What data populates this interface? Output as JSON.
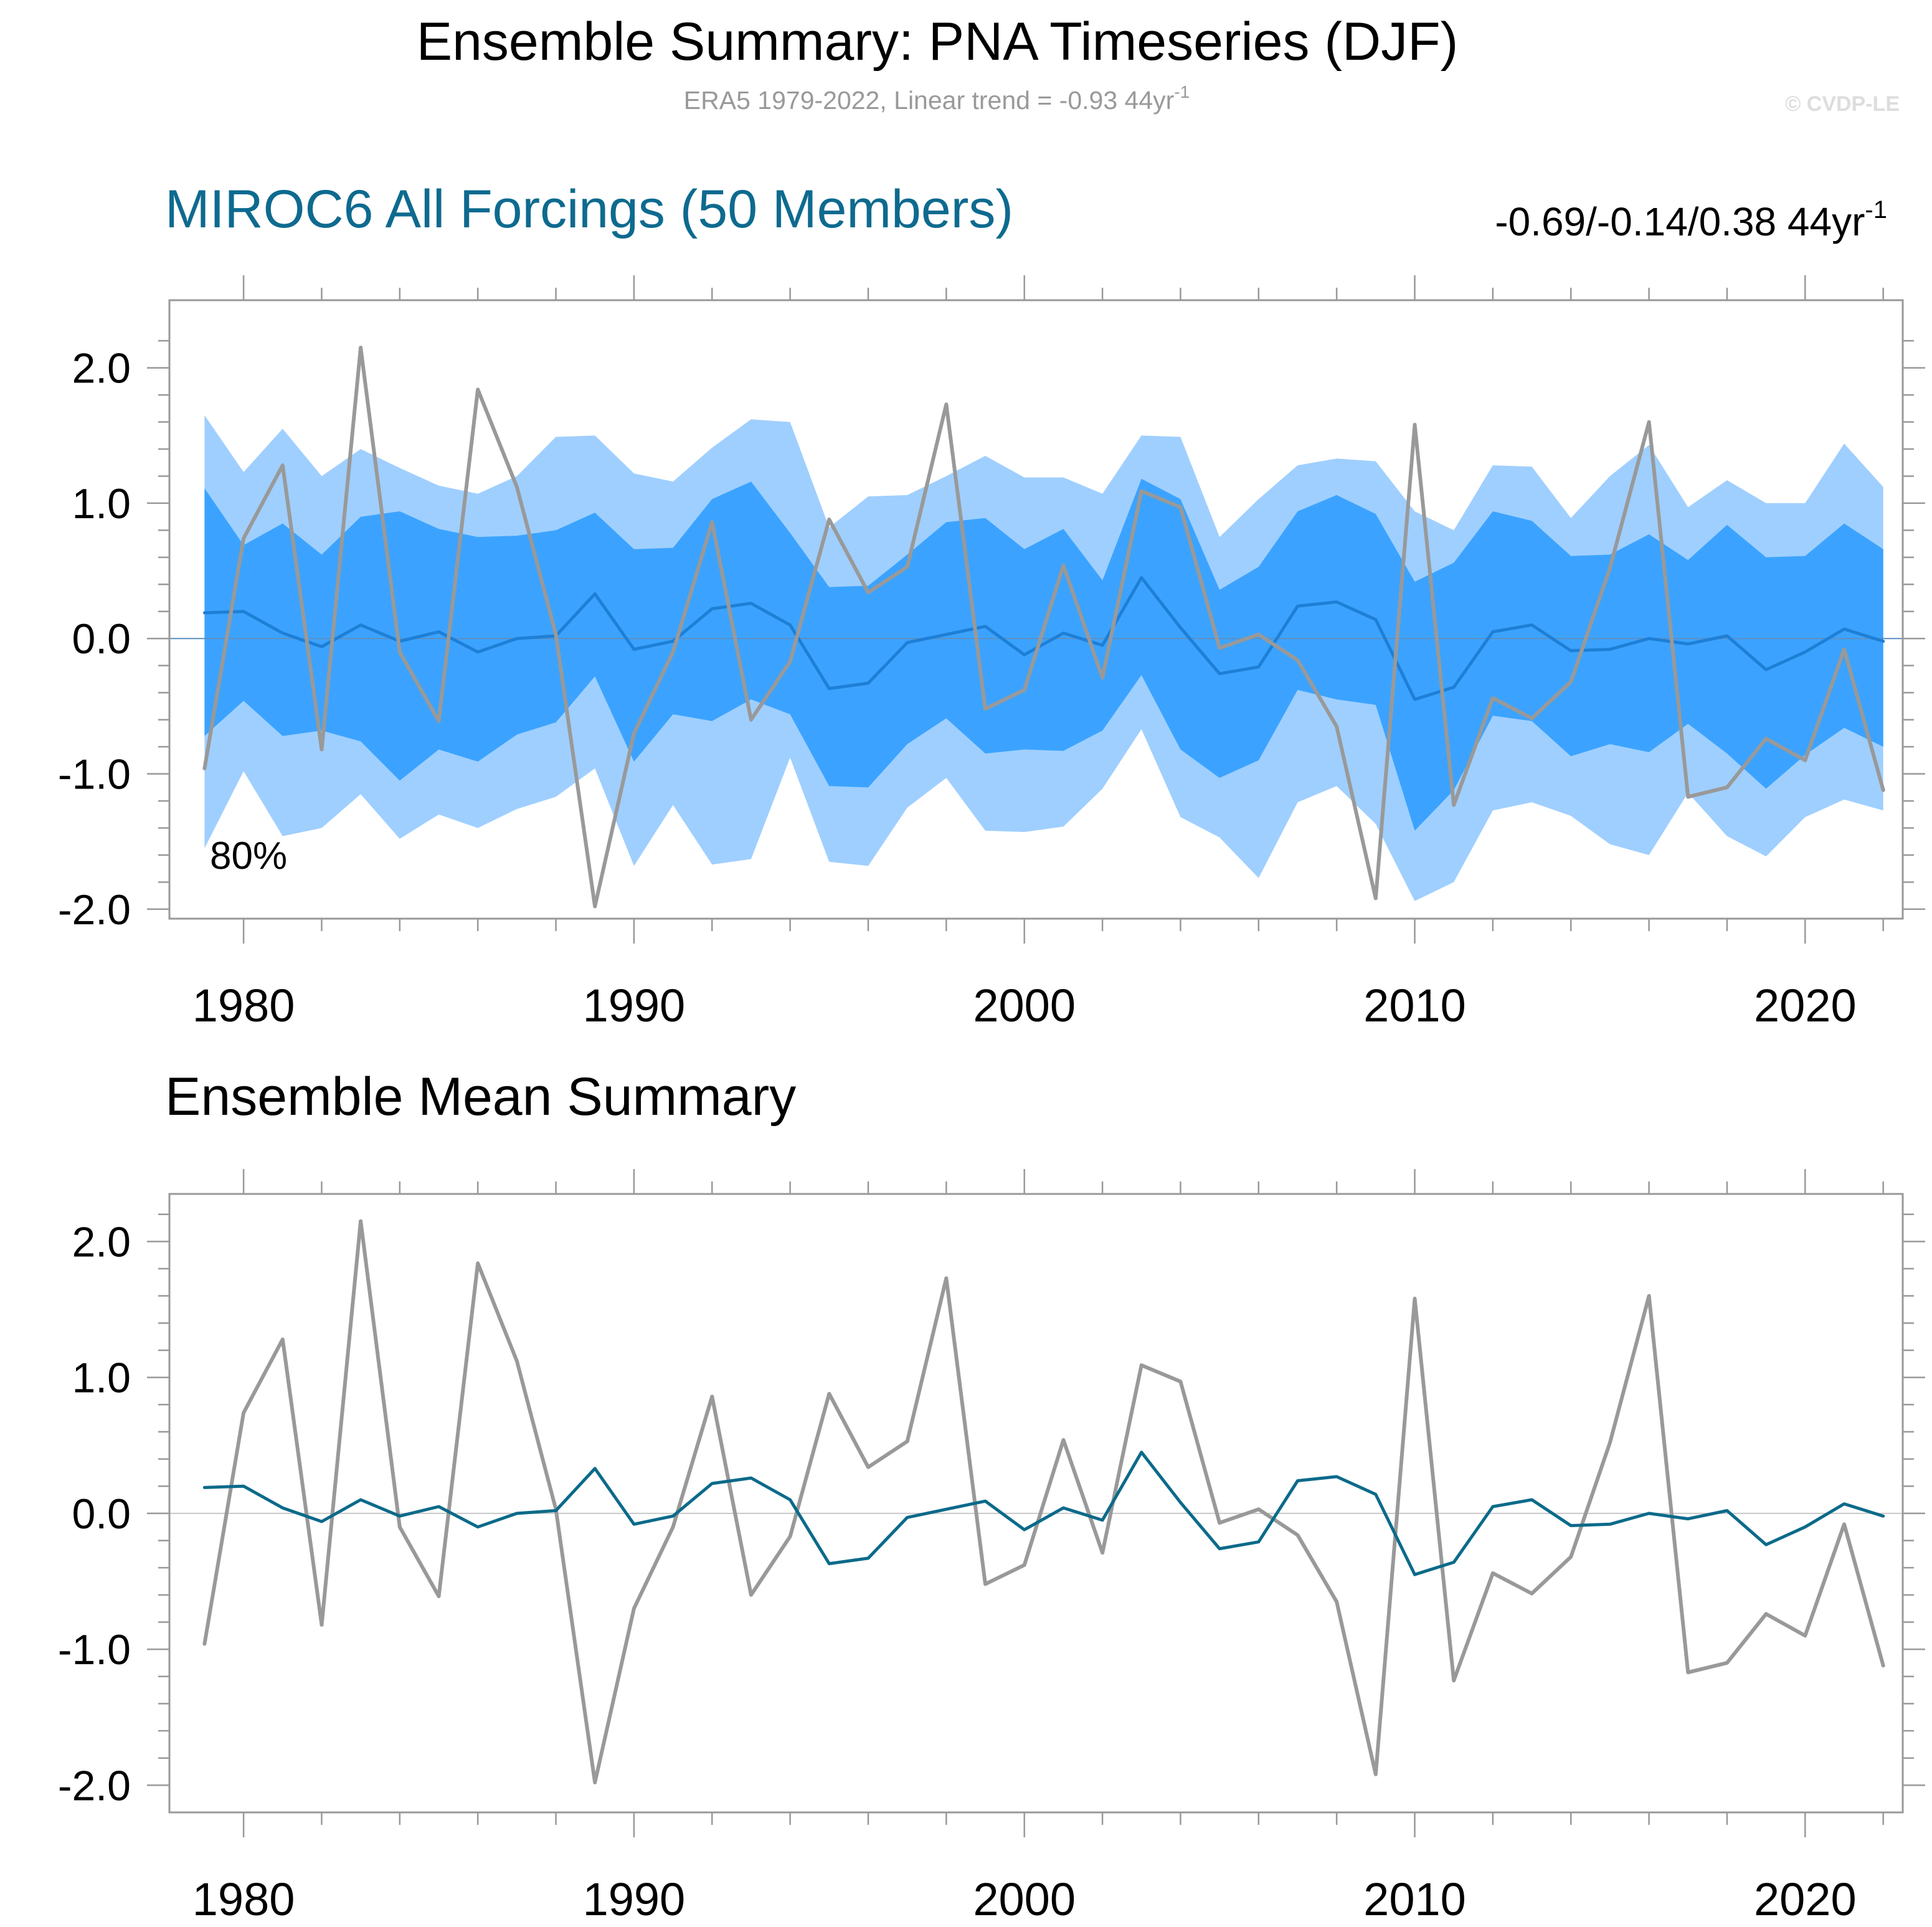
{
  "header": {
    "title": "Ensemble Summary: PNA Timeseries (DJF)",
    "subtitle": "ERA5 1979-2022, Linear trend = -0.93 44yr",
    "subtitle_sup": "-1",
    "credit": "© CVDP-LE"
  },
  "colors": {
    "outer_band": "#9fcfff",
    "inner_band": "#3ba3ff",
    "ens_mean_top": "#1e7fd6",
    "ens_mean_bottom": "#0c6a8a",
    "observed": "#999999",
    "axis": "#999999",
    "title_blue": "#0e6a8f"
  },
  "chart_data": [
    {
      "type": "area",
      "title": "MIROC6 All Forcings (50 Members)",
      "trend_label": "-0.69/-0.14/0.38 44yr",
      "trend_sup": "-1",
      "band_label": "80%",
      "xlim": [
        1978.1,
        2022.5
      ],
      "ylim": [
        -2.07,
        2.5
      ],
      "x_ticks": [
        1980,
        1990,
        2000,
        2010,
        2020
      ],
      "y_ticks": [
        2.0,
        1.0,
        0.0,
        -1.0,
        -2.0
      ],
      "y_tick_labels": [
        "2.0",
        "1.0",
        "0.0",
        "-1.0",
        "-2.0"
      ],
      "x": [
        1979,
        1980,
        1981,
        1982,
        1983,
        1984,
        1985,
        1986,
        1987,
        1988,
        1989,
        1990,
        1991,
        1992,
        1993,
        1994,
        1995,
        1996,
        1997,
        1998,
        1999,
        2000,
        2001,
        2002,
        2003,
        2004,
        2005,
        2006,
        2007,
        2008,
        2009,
        2010,
        2011,
        2012,
        2013,
        2014,
        2015,
        2016,
        2017,
        2018,
        2019,
        2020,
        2021,
        2022
      ],
      "series": [
        {
          "role": "outer_upper",
          "values": [
            1.65,
            1.23,
            1.55,
            1.2,
            1.4,
            1.26,
            1.13,
            1.07,
            1.2,
            1.49,
            1.5,
            1.22,
            1.16,
            1.41,
            1.62,
            1.6,
            0.82,
            1.05,
            1.06,
            1.2,
            1.35,
            1.19,
            1.19,
            1.07,
            1.5,
            1.49,
            0.75,
            1.03,
            1.28,
            1.33,
            1.31,
            0.94,
            0.8,
            1.28,
            1.27,
            0.89,
            1.2,
            1.43,
            0.97,
            1.17,
            1.0,
            1.0,
            1.44,
            1.12
          ]
        },
        {
          "role": "inner_upper",
          "values": [
            1.11,
            0.69,
            0.85,
            0.62,
            0.9,
            0.94,
            0.81,
            0.75,
            0.76,
            0.8,
            0.93,
            0.66,
            0.67,
            1.03,
            1.16,
            0.78,
            0.38,
            0.39,
            0.62,
            0.86,
            0.89,
            0.66,
            0.81,
            0.43,
            1.18,
            1.03,
            0.36,
            0.53,
            0.94,
            1.06,
            0.92,
            0.42,
            0.56,
            0.94,
            0.87,
            0.61,
            0.62,
            0.77,
            0.58,
            0.84,
            0.6,
            0.61,
            0.85,
            0.66
          ]
        },
        {
          "role": "inner_lower",
          "values": [
            -0.72,
            -0.46,
            -0.72,
            -0.68,
            -0.76,
            -1.05,
            -0.82,
            -0.91,
            -0.71,
            -0.62,
            -0.28,
            -0.91,
            -0.56,
            -0.61,
            -0.45,
            -0.56,
            -1.09,
            -1.1,
            -0.78,
            -0.59,
            -0.85,
            -0.82,
            -0.83,
            -0.68,
            -0.27,
            -0.82,
            -1.03,
            -0.9,
            -0.38,
            -0.45,
            -0.49,
            -1.42,
            -1.12,
            -0.57,
            -0.61,
            -0.87,
            -0.78,
            -0.84,
            -0.63,
            -0.85,
            -1.11,
            -0.86,
            -0.66,
            -0.8
          ]
        },
        {
          "role": "outer_lower",
          "values": [
            -1.55,
            -0.98,
            -1.46,
            -1.4,
            -1.15,
            -1.48,
            -1.3,
            -1.4,
            -1.26,
            -1.17,
            -0.96,
            -1.68,
            -1.23,
            -1.67,
            -1.63,
            -0.88,
            -1.65,
            -1.68,
            -1.25,
            -1.03,
            -1.42,
            -1.43,
            -1.39,
            -1.11,
            -0.67,
            -1.32,
            -1.47,
            -1.77,
            -1.21,
            -1.09,
            -1.37,
            -1.94,
            -1.8,
            -1.27,
            -1.21,
            -1.31,
            -1.52,
            -1.6,
            -1.14,
            -1.46,
            -1.61,
            -1.32,
            -1.19,
            -1.27
          ]
        },
        {
          "name": "MIROC6 All Forcings (50 Members)",
          "role": "ensemble_mean",
          "values": [
            0.19,
            0.2,
            0.04,
            -0.06,
            0.1,
            -0.02,
            0.05,
            -0.1,
            0.0,
            0.02,
            0.33,
            -0.08,
            -0.02,
            0.22,
            0.26,
            0.1,
            -0.37,
            -0.33,
            -0.03,
            0.03,
            0.09,
            -0.12,
            0.04,
            -0.05,
            0.45,
            0.08,
            -0.26,
            -0.21,
            0.24,
            0.27,
            0.14,
            -0.45,
            -0.36,
            0.05,
            0.1,
            -0.09,
            -0.08,
            0.0,
            -0.04,
            0.02,
            -0.23,
            -0.1,
            0.07,
            -0.02
          ]
        },
        {
          "name": "ERA5",
          "role": "observed",
          "values": [
            -0.96,
            0.74,
            1.28,
            -0.82,
            2.15,
            -0.1,
            -0.61,
            1.84,
            1.12,
            0.03,
            -1.98,
            -0.7,
            -0.1,
            0.86,
            -0.6,
            -0.17,
            0.88,
            0.34,
            0.53,
            1.73,
            -0.52,
            -0.38,
            0.54,
            -0.29,
            1.09,
            0.97,
            -0.07,
            0.03,
            -0.16,
            -0.65,
            -1.92,
            1.58,
            -1.23,
            -0.44,
            -0.59,
            -0.32,
            0.52,
            1.6,
            -1.17,
            -1.1,
            -0.74,
            -0.9,
            -0.08,
            -1.12
          ]
        }
      ]
    },
    {
      "type": "line",
      "title": "Ensemble Mean Summary",
      "xlim": [
        1978.1,
        2022.5
      ],
      "ylim": [
        -2.2,
        2.35
      ],
      "x_ticks": [
        1980,
        1990,
        2000,
        2010,
        2020
      ],
      "y_ticks": [
        2.0,
        1.0,
        0.0,
        -1.0,
        -2.0
      ],
      "y_tick_labels": [
        "2.0",
        "1.0",
        "0.0",
        "-1.0",
        "-2.0"
      ],
      "x": [
        1979,
        1980,
        1981,
        1982,
        1983,
        1984,
        1985,
        1986,
        1987,
        1988,
        1989,
        1990,
        1991,
        1992,
        1993,
        1994,
        1995,
        1996,
        1997,
        1998,
        1999,
        2000,
        2001,
        2002,
        2003,
        2004,
        2005,
        2006,
        2007,
        2008,
        2009,
        2010,
        2011,
        2012,
        2013,
        2014,
        2015,
        2016,
        2017,
        2018,
        2019,
        2020,
        2021,
        2022
      ],
      "series": [
        {
          "name": "ERA5",
          "role": "observed",
          "values": [
            -0.96,
            0.74,
            1.28,
            -0.82,
            2.15,
            -0.1,
            -0.61,
            1.84,
            1.12,
            0.03,
            -1.98,
            -0.7,
            -0.1,
            0.86,
            -0.6,
            -0.17,
            0.88,
            0.34,
            0.53,
            1.73,
            -0.52,
            -0.38,
            0.54,
            -0.29,
            1.09,
            0.97,
            -0.07,
            0.03,
            -0.16,
            -0.65,
            -1.92,
            1.58,
            -1.23,
            -0.44,
            -0.59,
            -0.32,
            0.52,
            1.6,
            -1.17,
            -1.1,
            -0.74,
            -0.9,
            -0.08,
            -1.12
          ]
        },
        {
          "name": "MIROC6 All Forcings (50 Members)",
          "role": "ensemble_mean",
          "values": [
            0.19,
            0.2,
            0.04,
            -0.06,
            0.1,
            -0.02,
            0.05,
            -0.1,
            0.0,
            0.02,
            0.33,
            -0.08,
            -0.02,
            0.22,
            0.26,
            0.1,
            -0.37,
            -0.33,
            -0.03,
            0.03,
            0.09,
            -0.12,
            0.04,
            -0.05,
            0.45,
            0.08,
            -0.26,
            -0.21,
            0.24,
            0.27,
            0.14,
            -0.45,
            -0.36,
            0.05,
            0.1,
            -0.09,
            -0.08,
            0.0,
            -0.04,
            0.02,
            -0.23,
            -0.1,
            0.07,
            -0.02
          ]
        }
      ]
    }
  ]
}
